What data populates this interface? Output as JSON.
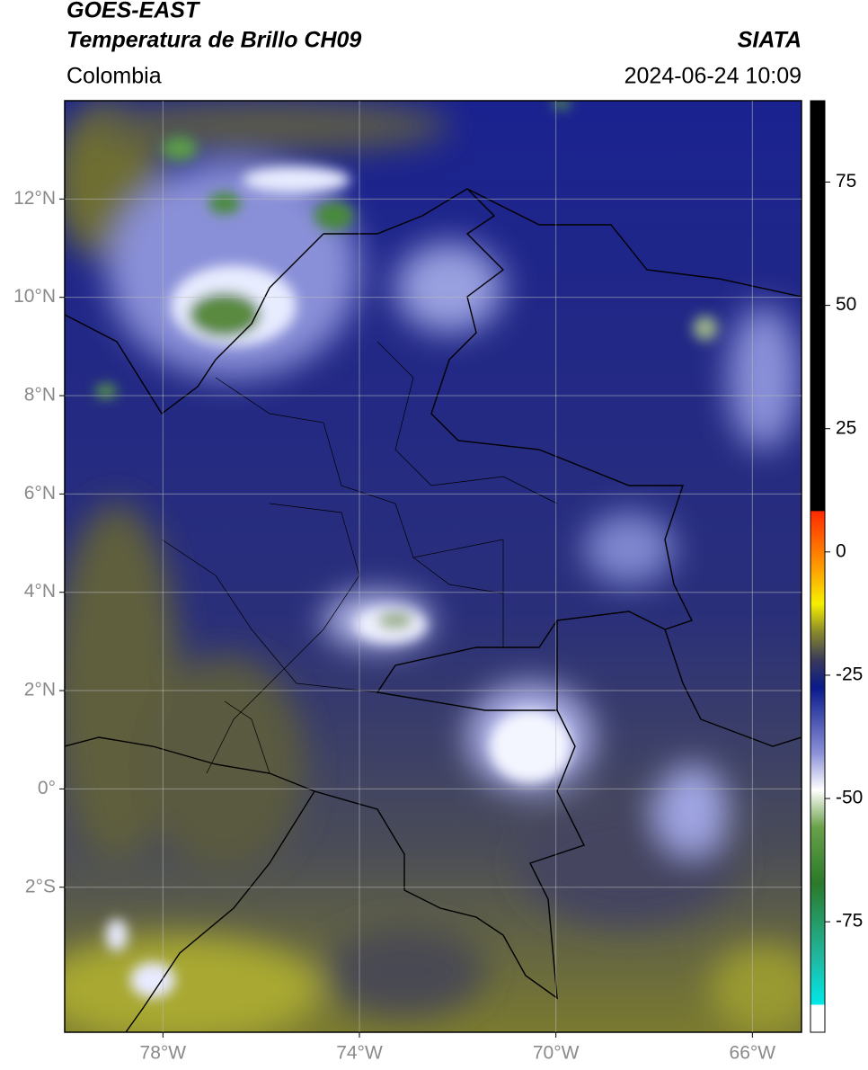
{
  "header": {
    "title": "GOES-EAST",
    "subtitle": "Temperatura de Brillo CH09",
    "region": "Colombia",
    "source": "SIATA",
    "datetime": "2024-06-24 10:09"
  },
  "map": {
    "xlim": [
      -80,
      -65
    ],
    "ylim": [
      -4.95,
      14
    ],
    "xticks": [
      {
        "value": -78,
        "label": "78°W"
      },
      {
        "value": -74,
        "label": "74°W"
      },
      {
        "value": -70,
        "label": "70°W"
      },
      {
        "value": -66,
        "label": "66°W"
      }
    ],
    "yticks": [
      {
        "value": 12,
        "label": "12°N"
      },
      {
        "value": 10,
        "label": "10°N"
      },
      {
        "value": 8,
        "label": "8°N"
      },
      {
        "value": 6,
        "label": "6°N"
      },
      {
        "value": 4,
        "label": "4°N"
      },
      {
        "value": 2,
        "label": "2°N"
      },
      {
        "value": 0,
        "label": "0°"
      },
      {
        "value": -2,
        "label": "2°S"
      }
    ],
    "grid": true
  },
  "colorbar": {
    "lim": [
      -97.4,
      91.5
    ],
    "ticks": [
      75,
      50,
      25,
      0,
      -25,
      -50,
      -75
    ]
  }
}
